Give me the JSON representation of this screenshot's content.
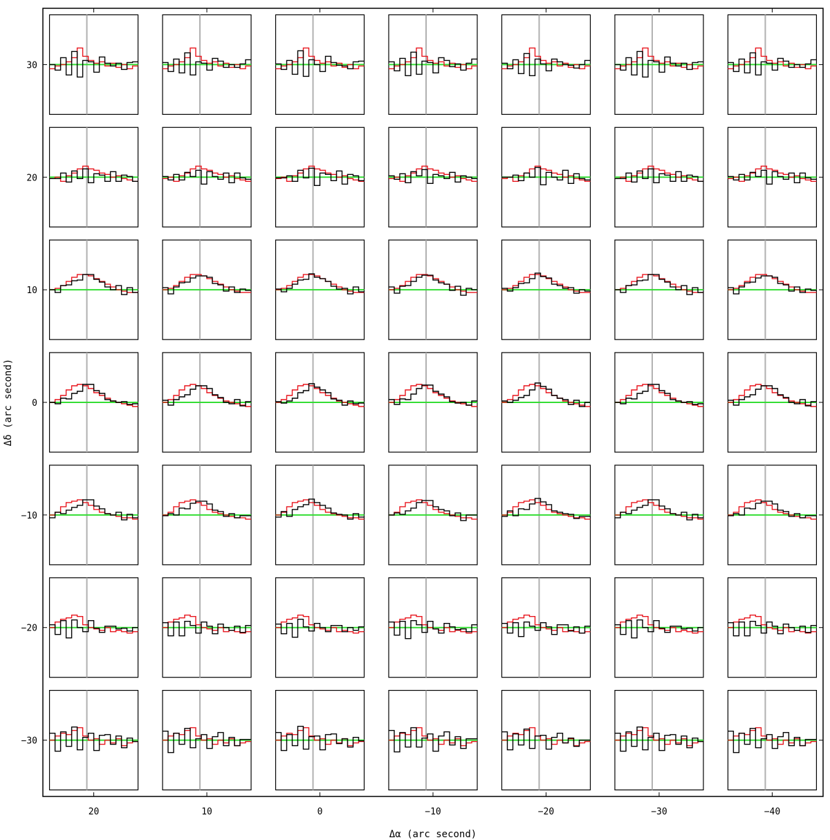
{
  "chart_data": {
    "type": "line",
    "title": "",
    "xlabel": "Δα (arc second)",
    "ylabel": "Δδ (arc second)",
    "xlim": [
      24.5,
      -44.5
    ],
    "ylim": [
      -35,
      35
    ],
    "x_ticks": [
      20,
      10,
      0,
      -10,
      -20,
      -30,
      -40
    ],
    "x_tick_labels": [
      "20",
      "10",
      "0",
      "−10",
      "−20",
      "−30",
      "−40"
    ],
    "y_ticks": [
      30,
      20,
      10,
      0,
      -10,
      -20,
      -30
    ],
    "y_tick_labels": [
      "30",
      "20",
      "10",
      "0",
      "−10",
      "−20",
      "−30"
    ],
    "grid": false,
    "series_colors": {
      "black": "#000000",
      "red": "#e8141c",
      "baseline": "#33dd33",
      "center_marker": "#b0b0b0"
    },
    "panel_columns_dalpha": [
      20,
      10,
      0,
      -10,
      -20,
      -30,
      -40
    ],
    "panel_rows_ddelta": [
      30,
      20,
      10,
      0,
      -10,
      -20,
      -30
    ],
    "panel_profiles": [
      {
        "row": 30,
        "black": [
          0.1,
          -0.4,
          0.4,
          -0.7,
          0.9,
          -0.8,
          0.3,
          0.1,
          -0.5,
          0.5,
          0.2,
          -0.1,
          0,
          -0.3,
          0.1,
          0.3
        ],
        "red": [
          -0.3,
          -0.1,
          0,
          0.2,
          0.5,
          1.2,
          0.6,
          0.3,
          0.1,
          0.2,
          -0.1,
          0.1,
          -0.2,
          0,
          -0.3,
          -0.1
        ]
      },
      {
        "row": 20,
        "black": [
          0,
          -0.1,
          0.2,
          -0.3,
          0.4,
          0,
          0.6,
          -0.5,
          0.3,
          0.1,
          -0.2,
          0.4,
          -0.4,
          0.2,
          0,
          -0.2
        ],
        "red": [
          -0.1,
          0,
          -0.3,
          0.1,
          0.3,
          0.6,
          0.8,
          0.6,
          0.5,
          0.3,
          0.2,
          0,
          0.1,
          -0.1,
          -0.2,
          -0.3
        ]
      },
      {
        "row": 10,
        "black": [
          0.1,
          -0.2,
          0.2,
          0.4,
          0.6,
          0.8,
          1.1,
          1,
          0.8,
          0.5,
          0.3,
          0,
          0.2,
          -0.3,
          0.1,
          -0.1
        ],
        "red": [
          0,
          0.1,
          0.3,
          0.6,
          0.9,
          1.1,
          1.1,
          1,
          0.8,
          0.6,
          0.4,
          0.2,
          0,
          -0.1,
          -0.2,
          -0.2
        ]
      },
      {
        "row": 0,
        "black": [
          0.1,
          -0.1,
          0.2,
          0.3,
          0.6,
          0.9,
          1.3,
          1.2,
          0.9,
          0.6,
          0.3,
          0.1,
          -0.1,
          0.1,
          -0.2,
          0
        ],
        "red": [
          0,
          0.2,
          0.5,
          0.9,
          1.2,
          1.3,
          1.2,
          1,
          0.7,
          0.5,
          0.3,
          0.1,
          0,
          -0.1,
          -0.2,
          -0.3
        ]
      },
      {
        "row": -10,
        "black": [
          -0.1,
          0.2,
          0,
          0.4,
          0.5,
          0.8,
          1.1,
          1,
          0.7,
          0.4,
          0.2,
          0,
          0.1,
          -0.3,
          0,
          -0.1
        ],
        "red": [
          0,
          0.2,
          0.6,
          0.9,
          1,
          1.1,
          0.9,
          0.7,
          0.4,
          0.2,
          0.1,
          0,
          -0.1,
          -0.2,
          -0.2,
          -0.3
        ]
      },
      {
        "row": -20,
        "black": [
          0.3,
          -0.5,
          0.4,
          -0.7,
          0.5,
          0.1,
          -0.3,
          0.4,
          0,
          -0.4,
          0.2,
          0.1,
          -0.2,
          0,
          -0.3,
          0.1
        ],
        "red": [
          0,
          0.4,
          0.6,
          0.7,
          0.9,
          0.8,
          0.2,
          0,
          -0.1,
          -0.2,
          0,
          -0.3,
          -0.2,
          -0.3,
          -0.4,
          -0.3
        ]
      },
      {
        "row": -30,
        "black": [
          0.6,
          -0.8,
          0.5,
          -0.4,
          0.9,
          -0.6,
          0.2,
          0.4,
          -0.7,
          0.3,
          0.5,
          -0.3,
          0.2,
          -0.5,
          0.1,
          0
        ],
        "red": [
          0,
          0.3,
          0.5,
          0.4,
          0.7,
          0.9,
          0.3,
          0,
          0.1,
          -0.3,
          0,
          -0.2,
          0.1,
          -0.4,
          -0.2,
          -0.1
        ]
      }
    ]
  }
}
